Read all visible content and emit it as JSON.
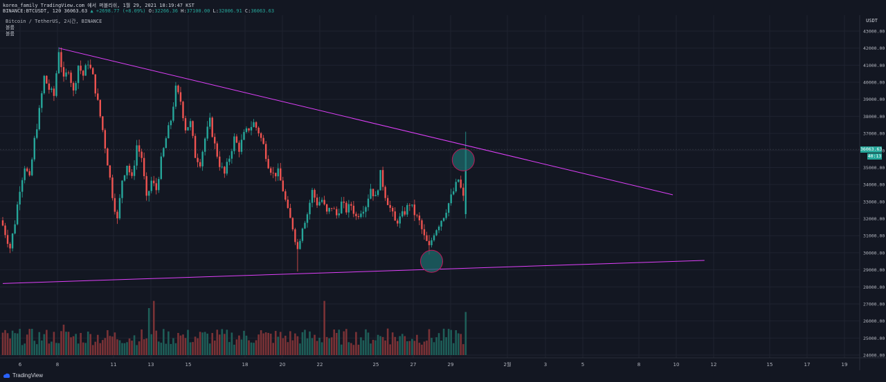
{
  "header": {
    "line1": "korea_family TradingView.com 에서 퍼블리쉬, 1월 29, 2021 18:19:47 KST",
    "symbol": "BINANCE:BTCUSDT, 120",
    "last": "36063.63",
    "change": "▲ +2698.77 (+8.09%)",
    "o_label": "O:",
    "o": "32266.36",
    "h_label": "H:",
    "h": "37100.00",
    "l_label": "L:",
    "l": "32006.91",
    "c_label": "C:",
    "c": "36063.63"
  },
  "legend": {
    "title": "Bitcoin / TetherUS, 2시간, BINANCE",
    "line2": "볼륨",
    "line3": "볼륨"
  },
  "price_axis": {
    "unit": "USDT",
    "current_price": "36063.63",
    "countdown": "40:13"
  },
  "footer": {
    "brand": "TradingView"
  },
  "colors": {
    "up": "#26a69a",
    "down": "#ef5350",
    "trendline": "#e040fb",
    "circle": "#1e6a6b",
    "background": "#131722"
  },
  "chart_data": {
    "type": "candlestick",
    "symbol": "BTCUSDT",
    "interval": "120",
    "ylim": [
      23700,
      43800
    ],
    "y_ticks": [
      24000,
      25000,
      26000,
      27000,
      28000,
      29000,
      30000,
      31000,
      32000,
      33000,
      34000,
      35000,
      36000,
      37000,
      38000,
      39000,
      40000,
      41000,
      42000,
      43000
    ],
    "y_tick_labels": [
      "24000.00",
      "25000.00",
      "26000.00",
      "27000.00",
      "28000.00",
      "29000.00",
      "30000.00",
      "31000.00",
      "32000.00",
      "33000.00",
      "34000.00",
      "35000.00",
      "36000.00",
      "37000.00",
      "38000.00",
      "39000.00",
      "40000.00",
      "41000.00",
      "42000.00",
      "43000.00"
    ],
    "x_tick_labels": [
      "6",
      "8",
      "11",
      "13",
      "15",
      "18",
      "20",
      "22",
      "25",
      "27",
      "29",
      "2월",
      "3",
      "5",
      "8",
      "10",
      "12",
      "15",
      "17",
      "19"
    ],
    "price_path": [
      [
        0,
        31600
      ],
      [
        3,
        30300
      ],
      [
        5,
        31800
      ],
      [
        7,
        33800
      ],
      [
        9,
        35100
      ],
      [
        11,
        34300
      ],
      [
        13,
        36600
      ],
      [
        15,
        38300
      ],
      [
        17,
        40300
      ],
      [
        19,
        39600
      ],
      [
        21,
        39200
      ],
      [
        23,
        41900
      ],
      [
        25,
        40100
      ],
      [
        27,
        40800
      ],
      [
        29,
        39400
      ],
      [
        31,
        41000
      ],
      [
        33,
        40400
      ],
      [
        35,
        41200
      ],
      [
        37,
        40300
      ],
      [
        39,
        38800
      ],
      [
        41,
        37200
      ],
      [
        43,
        35300
      ],
      [
        45,
        33400
      ],
      [
        47,
        31900
      ],
      [
        49,
        34300
      ],
      [
        51,
        35200
      ],
      [
        53,
        34300
      ],
      [
        55,
        36300
      ],
      [
        57,
        35600
      ],
      [
        59,
        33100
      ],
      [
        61,
        34200
      ],
      [
        63,
        33700
      ],
      [
        65,
        35400
      ],
      [
        67,
        36700
      ],
      [
        69,
        37800
      ],
      [
        71,
        39600
      ],
      [
        73,
        38900
      ],
      [
        75,
        37300
      ],
      [
        77,
        37600
      ],
      [
        79,
        35700
      ],
      [
        81,
        35300
      ],
      [
        83,
        36700
      ],
      [
        85,
        37700
      ],
      [
        87,
        36300
      ],
      [
        89,
        35200
      ],
      [
        91,
        34600
      ],
      [
        93,
        35600
      ],
      [
        95,
        36700
      ],
      [
        97,
        36100
      ],
      [
        99,
        36900
      ],
      [
        101,
        37300
      ],
      [
        103,
        37600
      ],
      [
        105,
        37100
      ],
      [
        107,
        36300
      ],
      [
        109,
        35200
      ],
      [
        111,
        34600
      ],
      [
        113,
        34700
      ],
      [
        115,
        33700
      ],
      [
        117,
        32400
      ],
      [
        119,
        31500
      ],
      [
        121,
        30200
      ],
      [
        123,
        31600
      ],
      [
        125,
        32300
      ],
      [
        127,
        33600
      ],
      [
        129,
        32900
      ],
      [
        131,
        33100
      ],
      [
        133,
        32300
      ],
      [
        135,
        32700
      ],
      [
        137,
        32200
      ],
      [
        139,
        32900
      ],
      [
        141,
        32500
      ],
      [
        143,
        32800
      ],
      [
        145,
        32100
      ],
      [
        147,
        32500
      ],
      [
        149,
        32800
      ],
      [
        151,
        33800
      ],
      [
        153,
        33200
      ],
      [
        155,
        34600
      ],
      [
        157,
        33400
      ],
      [
        159,
        32600
      ],
      [
        161,
        31800
      ],
      [
        163,
        32000
      ],
      [
        165,
        32400
      ],
      [
        167,
        32900
      ],
      [
        169,
        32300
      ],
      [
        171,
        31800
      ],
      [
        173,
        30900
      ],
      [
        175,
        30300
      ],
      [
        177,
        31200
      ],
      [
        179,
        31700
      ],
      [
        181,
        32200
      ],
      [
        183,
        32900
      ],
      [
        185,
        33600
      ],
      [
        187,
        34300
      ],
      [
        189,
        33200
      ],
      [
        190,
        36063.63
      ]
    ],
    "volume_ylim": [
      0,
      100
    ],
    "volume_spikes": [
      [
        25,
        55
      ],
      [
        60,
        85
      ],
      [
        62,
        98
      ],
      [
        72,
        40
      ],
      [
        106,
        45
      ],
      [
        132,
        98
      ],
      [
        158,
        48
      ],
      [
        186,
        45
      ],
      [
        190,
        78
      ]
    ],
    "last": {
      "price": 36063.63,
      "high": 37100.0,
      "low": 32006.91,
      "open": 32266.36
    }
  },
  "annotations": {
    "upper_trendline": {
      "x1_index": 23,
      "y1": 42000,
      "x2_index": 275,
      "y2": 33400
    },
    "lower_trendline": {
      "x1_index": 0,
      "y1": 28200,
      "x2_index": 288,
      "y2": 29550
    },
    "circles": [
      {
        "x_index": 189,
        "y": 35450
      },
      {
        "x_index": 176,
        "y": 29500
      }
    ]
  }
}
